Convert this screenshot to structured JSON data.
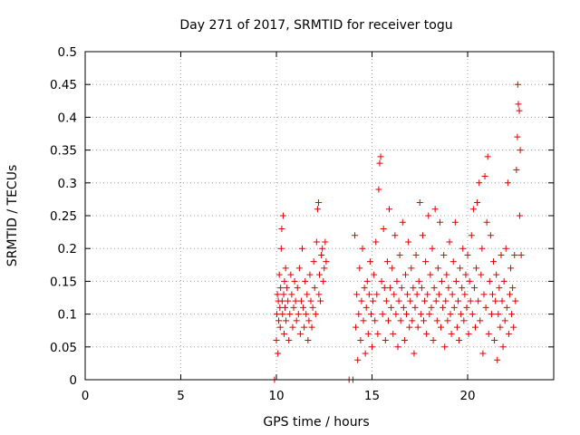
{
  "chart_data": {
    "type": "scatter",
    "title": "Day 271 of 2017, SRMTID for receiver togu",
    "xlabel": "GPS time / hours",
    "ylabel": "SRMTID / TECUs",
    "xlim": [
      0,
      24.5
    ],
    "ylim": [
      0,
      0.5
    ],
    "xticks": [
      0,
      5,
      10,
      15,
      20
    ],
    "xtick_labels": [
      "0",
      "5",
      "10",
      "15",
      "20"
    ],
    "yticks": [
      0,
      0.05,
      0.1,
      0.15,
      0.2,
      0.25,
      0.3,
      0.35,
      0.4,
      0.45,
      0.5
    ],
    "ytick_labels": [
      "0",
      "0.05",
      "0.1",
      "0.15",
      "0.2",
      "0.25",
      "0.3",
      "0.35",
      "0.4",
      "0.45",
      "0.5"
    ],
    "grid": true,
    "legend": "none",
    "marker": "+",
    "color": "#e00000",
    "series": [
      {
        "name": "SRMTID",
        "points": [
          [
            9.9,
            0.0
          ],
          [
            10.0,
            0.06
          ],
          [
            10.02,
            0.1
          ],
          [
            10.05,
            0.13
          ],
          [
            10.08,
            0.04
          ],
          [
            10.1,
            0.12
          ],
          [
            10.12,
            0.09
          ],
          [
            10.15,
            0.16
          ],
          [
            10.18,
            0.11
          ],
          [
            10.2,
            0.08
          ],
          [
            10.22,
            0.14
          ],
          [
            10.25,
            0.2
          ],
          [
            10.28,
            0.23
          ],
          [
            10.3,
            0.12
          ],
          [
            10.32,
            0.1
          ],
          [
            10.35,
            0.25
          ],
          [
            10.38,
            0.13
          ],
          [
            10.4,
            0.07
          ],
          [
            10.42,
            0.15
          ],
          [
            10.45,
            0.11
          ],
          [
            10.48,
            0.17
          ],
          [
            10.5,
            0.09
          ],
          [
            10.55,
            0.14
          ],
          [
            10.6,
            0.12
          ],
          [
            10.65,
            0.06
          ],
          [
            10.7,
            0.1
          ],
          [
            10.75,
            0.16
          ],
          [
            10.8,
            0.13
          ],
          [
            10.85,
            0.08
          ],
          [
            10.9,
            0.11
          ],
          [
            10.95,
            0.15
          ],
          [
            11.0,
            0.12
          ],
          [
            11.05,
            0.09
          ],
          [
            11.1,
            0.14
          ],
          [
            11.15,
            0.1
          ],
          [
            11.2,
            0.17
          ],
          [
            11.25,
            0.07
          ],
          [
            11.3,
            0.12
          ],
          [
            11.35,
            0.2
          ],
          [
            11.4,
            0.11
          ],
          [
            11.45,
            0.08
          ],
          [
            11.5,
            0.15
          ],
          [
            11.55,
            0.1
          ],
          [
            11.6,
            0.13
          ],
          [
            11.65,
            0.06
          ],
          [
            11.7,
            0.09
          ],
          [
            11.75,
            0.16
          ],
          [
            11.8,
            0.12
          ],
          [
            11.85,
            0.08
          ],
          [
            11.9,
            0.11
          ],
          [
            11.95,
            0.18
          ],
          [
            12.0,
            0.14
          ],
          [
            12.05,
            0.1
          ],
          [
            12.1,
            0.21
          ],
          [
            12.15,
            0.26
          ],
          [
            12.2,
            0.27
          ],
          [
            12.22,
            0.13
          ],
          [
            12.25,
            0.16
          ],
          [
            12.3,
            0.12
          ],
          [
            12.35,
            0.19
          ],
          [
            12.4,
            0.2
          ],
          [
            12.45,
            0.15
          ],
          [
            12.5,
            0.17
          ],
          [
            12.55,
            0.21
          ],
          [
            12.6,
            0.18
          ],
          [
            13.8,
            0.0
          ],
          [
            14.0,
            0.0
          ],
          [
            14.1,
            0.22
          ],
          [
            14.15,
            0.08
          ],
          [
            14.2,
            0.13
          ],
          [
            14.25,
            0.03
          ],
          [
            14.3,
            0.1
          ],
          [
            14.35,
            0.17
          ],
          [
            14.4,
            0.06
          ],
          [
            14.45,
            0.12
          ],
          [
            14.5,
            0.2
          ],
          [
            14.55,
            0.09
          ],
          [
            14.6,
            0.14
          ],
          [
            14.65,
            0.04
          ],
          [
            14.7,
            0.11
          ],
          [
            14.75,
            0.15
          ],
          [
            14.8,
            0.07
          ],
          [
            14.85,
            0.13
          ],
          [
            14.9,
            0.18
          ],
          [
            14.95,
            0.1
          ],
          [
            15.0,
            0.05
          ],
          [
            15.05,
            0.12
          ],
          [
            15.1,
            0.16
          ],
          [
            15.15,
            0.09
          ],
          [
            15.2,
            0.21
          ],
          [
            15.25,
            0.13
          ],
          [
            15.3,
            0.07
          ],
          [
            15.35,
            0.29
          ],
          [
            15.4,
            0.33
          ],
          [
            15.45,
            0.34
          ],
          [
            15.5,
            0.15
          ],
          [
            15.55,
            0.1
          ],
          [
            15.6,
            0.23
          ],
          [
            15.65,
            0.14
          ],
          [
            15.7,
            0.06
          ],
          [
            15.75,
            0.12
          ],
          [
            15.8,
            0.18
          ],
          [
            15.85,
            0.09
          ],
          [
            15.9,
            0.26
          ],
          [
            15.95,
            0.14
          ],
          [
            16.0,
            0.11
          ],
          [
            16.05,
            0.17
          ],
          [
            16.1,
            0.07
          ],
          [
            16.15,
            0.13
          ],
          [
            16.2,
            0.22
          ],
          [
            16.25,
            0.1
          ],
          [
            16.3,
            0.15
          ],
          [
            16.35,
            0.05
          ],
          [
            16.4,
            0.12
          ],
          [
            16.45,
            0.19
          ],
          [
            16.5,
            0.09
          ],
          [
            16.55,
            0.14
          ],
          [
            16.6,
            0.24
          ],
          [
            16.65,
            0.11
          ],
          [
            16.7,
            0.06
          ],
          [
            16.75,
            0.16
          ],
          [
            16.8,
            0.1
          ],
          [
            16.85,
            0.13
          ],
          [
            16.9,
            0.21
          ],
          [
            16.95,
            0.08
          ],
          [
            17.0,
            0.12
          ],
          [
            17.05,
            0.17
          ],
          [
            17.1,
            0.09
          ],
          [
            17.15,
            0.14
          ],
          [
            17.2,
            0.04
          ],
          [
            17.25,
            0.11
          ],
          [
            17.3,
            0.19
          ],
          [
            17.35,
            0.13
          ],
          [
            17.4,
            0.08
          ],
          [
            17.45,
            0.15
          ],
          [
            17.5,
            0.27
          ],
          [
            17.55,
            0.1
          ],
          [
            17.6,
            0.14
          ],
          [
            17.65,
            0.22
          ],
          [
            17.7,
            0.09
          ],
          [
            17.75,
            0.12
          ],
          [
            17.8,
            0.18
          ],
          [
            17.85,
            0.07
          ],
          [
            17.9,
            0.13
          ],
          [
            17.95,
            0.25
          ],
          [
            18.0,
            0.1
          ],
          [
            18.05,
            0.16
          ],
          [
            18.1,
            0.11
          ],
          [
            18.15,
            0.2
          ],
          [
            18.2,
            0.06
          ],
          [
            18.25,
            0.14
          ],
          [
            18.3,
            0.26
          ],
          [
            18.35,
            0.12
          ],
          [
            18.4,
            0.09
          ],
          [
            18.45,
            0.17
          ],
          [
            18.5,
            0.13
          ],
          [
            18.55,
            0.24
          ],
          [
            18.6,
            0.08
          ],
          [
            18.65,
            0.15
          ],
          [
            18.7,
            0.11
          ],
          [
            18.75,
            0.19
          ],
          [
            18.8,
            0.05
          ],
          [
            18.85,
            0.12
          ],
          [
            18.9,
            0.16
          ],
          [
            18.95,
            0.09
          ],
          [
            19.0,
            0.14
          ],
          [
            19.05,
            0.21
          ],
          [
            19.1,
            0.1
          ],
          [
            19.15,
            0.07
          ],
          [
            19.2,
            0.13
          ],
          [
            19.25,
            0.18
          ],
          [
            19.3,
            0.11
          ],
          [
            19.35,
            0.24
          ],
          [
            19.4,
            0.15
          ],
          [
            19.45,
            0.08
          ],
          [
            19.5,
            0.12
          ],
          [
            19.55,
            0.06
          ],
          [
            19.6,
            0.17
          ],
          [
            19.65,
            0.1
          ],
          [
            19.7,
            0.14
          ],
          [
            19.75,
            0.2
          ],
          [
            19.8,
            0.09
          ],
          [
            19.85,
            0.13
          ],
          [
            19.9,
            0.16
          ],
          [
            19.95,
            0.11
          ],
          [
            20.0,
            0.19
          ],
          [
            20.05,
            0.07
          ],
          [
            20.1,
            0.15
          ],
          [
            20.15,
            0.12
          ],
          [
            20.2,
            0.22
          ],
          [
            20.25,
            0.1
          ],
          [
            20.3,
            0.26
          ],
          [
            20.35,
            0.14
          ],
          [
            20.4,
            0.08
          ],
          [
            20.45,
            0.17
          ],
          [
            20.5,
            0.27
          ],
          [
            20.55,
            0.12
          ],
          [
            20.6,
            0.3
          ],
          [
            20.65,
            0.09
          ],
          [
            20.7,
            0.16
          ],
          [
            20.75,
            0.2
          ],
          [
            20.8,
            0.04
          ],
          [
            20.85,
            0.13
          ],
          [
            20.9,
            0.31
          ],
          [
            20.95,
            0.11
          ],
          [
            21.0,
            0.24
          ],
          [
            21.05,
            0.34
          ],
          [
            21.1,
            0.07
          ],
          [
            21.15,
            0.15
          ],
          [
            21.2,
            0.22
          ],
          [
            21.25,
            0.1
          ],
          [
            21.3,
            0.13
          ],
          [
            21.35,
            0.18
          ],
          [
            21.4,
            0.06
          ],
          [
            21.45,
            0.12
          ],
          [
            21.5,
            0.16
          ],
          [
            21.55,
            0.03
          ],
          [
            21.6,
            0.1
          ],
          [
            21.65,
            0.14
          ],
          [
            21.7,
            0.08
          ],
          [
            21.75,
            0.19
          ],
          [
            21.8,
            0.12
          ],
          [
            21.85,
            0.05
          ],
          [
            21.9,
            0.15
          ],
          [
            21.95,
            0.09
          ],
          [
            22.0,
            0.2
          ],
          [
            22.05,
            0.11
          ],
          [
            22.1,
            0.3
          ],
          [
            22.15,
            0.07
          ],
          [
            22.2,
            0.13
          ],
          [
            22.25,
            0.17
          ],
          [
            22.3,
            0.1
          ],
          [
            22.35,
            0.14
          ],
          [
            22.4,
            0.08
          ],
          [
            22.45,
            0.19
          ],
          [
            22.5,
            0.12
          ],
          [
            22.55,
            0.32
          ],
          [
            22.6,
            0.37
          ],
          [
            22.62,
            0.45
          ],
          [
            22.65,
            0.42
          ],
          [
            22.7,
            0.41
          ],
          [
            22.72,
            0.25
          ],
          [
            22.75,
            0.35
          ],
          [
            22.8,
            0.19
          ]
        ]
      }
    ]
  }
}
